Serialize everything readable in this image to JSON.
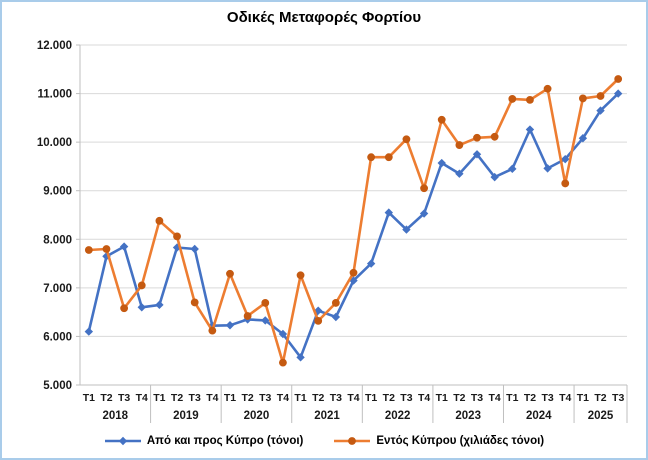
{
  "title": "Οδικές Μεταφορές Φορτίου",
  "colors": {
    "series1": "#4472C4",
    "series2": "#ED7D31",
    "series2_marker": "#C55A11",
    "gridline": "#D9D9D9",
    "axis": "#BFBFBF",
    "text": "#1A1A1A",
    "frame_border": "#A9CCEA"
  },
  "chart_data": {
    "type": "line",
    "title": "Οδικές Μεταφορές Φορτίου",
    "grid": true,
    "legend_position": "bottom",
    "y_axis": {
      "min": 5000,
      "max": 12000,
      "step": 1000,
      "tick_labels": [
        "5.000",
        "6.000",
        "7.000",
        "8.000",
        "9.000",
        "10.000",
        "11.000",
        "12.000"
      ]
    },
    "x_axis": {
      "quarter_pattern": [
        "T1",
        "T2",
        "T3",
        "T4"
      ],
      "years": [
        {
          "label": "2018",
          "quarters": 4
        },
        {
          "label": "2019",
          "quarters": 4
        },
        {
          "label": "2020",
          "quarters": 4
        },
        {
          "label": "2021",
          "quarters": 4
        },
        {
          "label": "2022",
          "quarters": 4
        },
        {
          "label": "2023",
          "quarters": 4
        },
        {
          "label": "2024",
          "quarters": 4
        },
        {
          "label": "2025",
          "quarters": 3
        }
      ]
    },
    "series": [
      {
        "name": "Από και προς Κύπρο (τόνοι)",
        "marker": "diamond",
        "values": [
          6100,
          7650,
          7850,
          6600,
          6650,
          7830,
          7800,
          6220,
          6230,
          6350,
          6330,
          6050,
          5570,
          6530,
          6400,
          7150,
          7500,
          8550,
          8200,
          8530,
          9570,
          9350,
          9750,
          9280,
          9450,
          10260,
          9460,
          9650,
          10080,
          10650,
          11000
        ]
      },
      {
        "name": "Εντός Κύπρου (χιλιάδες τόνοι)",
        "marker": "circle",
        "values": [
          7780,
          7800,
          6580,
          7050,
          8380,
          8060,
          6700,
          6120,
          7290,
          6420,
          6690,
          5460,
          7260,
          6320,
          6690,
          7310,
          9690,
          9690,
          10060,
          9050,
          10460,
          9940,
          10090,
          10110,
          10890,
          10870,
          11100,
          9150,
          10900,
          10950,
          11300
        ]
      }
    ]
  }
}
